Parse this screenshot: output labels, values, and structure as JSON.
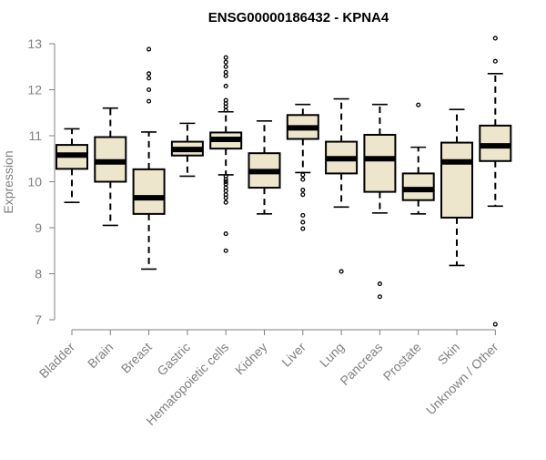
{
  "chart_data": {
    "type": "boxplot",
    "title": "ENSG00000186432 - KPNA4",
    "xlabel": "",
    "ylabel": "Expression",
    "ylim": [
      6.8,
      13.2
    ],
    "yticks": [
      7,
      8,
      9,
      10,
      11,
      12,
      13
    ],
    "colors": {
      "box_fill": "#ede6cc",
      "box_stroke": "#000000",
      "median": "#000000",
      "axis": "#808080",
      "tick_text": "#808080",
      "title_text": "#000000"
    },
    "categories": [
      "Bladder",
      "Brain",
      "Breast",
      "Gastric",
      "Hematopoietic cells",
      "Kidney",
      "Liver",
      "Lung",
      "Pancreas",
      "Prostate",
      "Skin",
      "Unknown / Other"
    ],
    "boxes": [
      {
        "name": "Bladder",
        "whisker_low": 9.55,
        "q1": 10.28,
        "median": 10.58,
        "q3": 10.8,
        "whisker_high": 11.15,
        "outliers": []
      },
      {
        "name": "Brain",
        "whisker_low": 9.05,
        "q1": 10.0,
        "median": 10.43,
        "q3": 10.97,
        "whisker_high": 11.6,
        "outliers": []
      },
      {
        "name": "Breast",
        "whisker_low": 8.1,
        "q1": 9.3,
        "median": 9.65,
        "q3": 10.27,
        "whisker_high": 11.08,
        "outliers": [
          11.75,
          12.0,
          12.25,
          12.35,
          12.88
        ]
      },
      {
        "name": "Gastric",
        "whisker_low": 10.12,
        "q1": 10.57,
        "median": 10.7,
        "q3": 10.87,
        "whisker_high": 11.27,
        "outliers": []
      },
      {
        "name": "Hematopoietic cells",
        "whisker_low": 10.15,
        "q1": 10.72,
        "median": 10.92,
        "q3": 11.07,
        "whisker_high": 11.52,
        "outliers": [
          8.5,
          8.87,
          9.55,
          9.65,
          9.72,
          9.8,
          9.87,
          9.95,
          10.0,
          10.05,
          10.12,
          11.55,
          11.63,
          11.7,
          11.77,
          12.08,
          12.3,
          12.38,
          12.5,
          12.6,
          12.7
        ]
      },
      {
        "name": "Kidney",
        "whisker_low": 9.3,
        "q1": 9.87,
        "median": 10.22,
        "q3": 10.62,
        "whisker_high": 11.32,
        "outliers": []
      },
      {
        "name": "Liver",
        "whisker_low": 10.2,
        "q1": 10.93,
        "median": 11.17,
        "q3": 11.45,
        "whisker_high": 11.68,
        "outliers": [
          8.98,
          9.12,
          9.27,
          9.72,
          9.82,
          10.05,
          10.15
        ]
      },
      {
        "name": "Lung",
        "whisker_low": 9.45,
        "q1": 10.18,
        "median": 10.5,
        "q3": 10.87,
        "whisker_high": 11.8,
        "outliers": [
          8.05
        ]
      },
      {
        "name": "Pancreas",
        "whisker_low": 9.32,
        "q1": 9.78,
        "median": 10.5,
        "q3": 11.02,
        "whisker_high": 11.68,
        "outliers": [
          7.5,
          7.78
        ]
      },
      {
        "name": "Prostate",
        "whisker_low": 9.3,
        "q1": 9.6,
        "median": 9.83,
        "q3": 10.18,
        "whisker_high": 10.75,
        "outliers": [
          11.67
        ]
      },
      {
        "name": "Skin",
        "whisker_low": 8.18,
        "q1": 9.22,
        "median": 10.43,
        "q3": 10.85,
        "whisker_high": 11.57,
        "outliers": []
      },
      {
        "name": "Unknown / Other",
        "whisker_low": 9.47,
        "q1": 10.45,
        "median": 10.78,
        "q3": 11.22,
        "whisker_high": 12.35,
        "outliers": [
          6.9,
          12.62,
          13.12
        ]
      }
    ]
  }
}
